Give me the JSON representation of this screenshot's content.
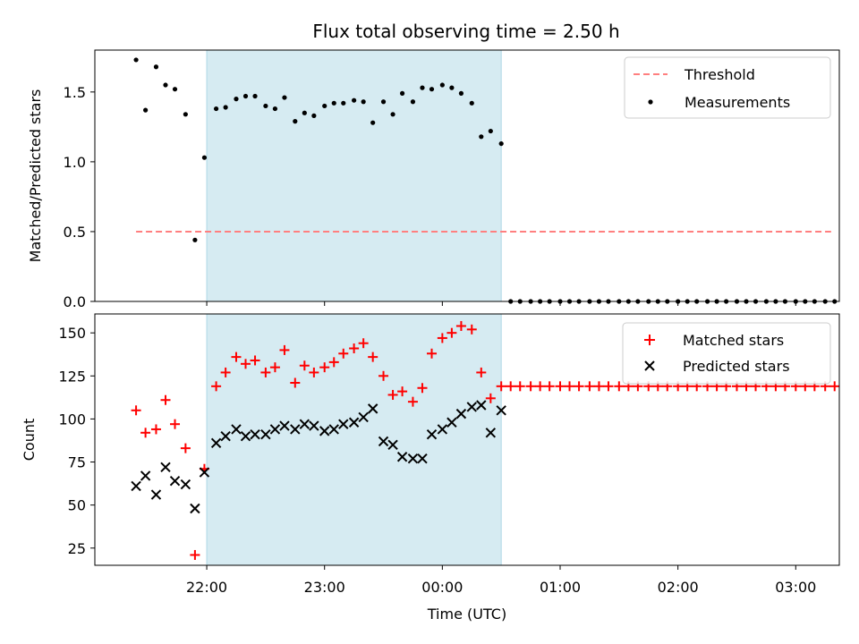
{
  "title": "Flux total observing time = 2.50 h",
  "colors": {
    "threshold": "#ff7f7f",
    "measurement": "#000000",
    "matched": "#ff0000",
    "predicted": "#000000",
    "shade": "#add8e6"
  },
  "chart_data": [
    {
      "type": "scatter",
      "ylabel": "Matched/Predicted stars",
      "xlim": [
        -0.95,
        5.37
      ],
      "ylim": [
        0,
        1.8
      ],
      "yticks": [
        0.0,
        0.5,
        1.0,
        1.5
      ],
      "ytick_labels": [
        "0.0",
        "0.5",
        "1.0",
        "1.5"
      ],
      "shaded_span": [
        0,
        2.5
      ],
      "legend": {
        "placement": "top-right",
        "entries": [
          "Threshold",
          "Measurements"
        ]
      },
      "threshold": {
        "name": "Threshold",
        "value": 0.5,
        "x": [
          -0.6,
          5.3
        ]
      },
      "series": [
        {
          "name": "Measurements",
          "x": [
            -0.6,
            -0.52,
            -0.43,
            -0.35,
            -0.27,
            -0.18,
            -0.1,
            -0.02,
            0.08,
            0.16,
            0.25,
            0.33,
            0.41,
            0.5,
            0.58,
            0.66,
            0.75,
            0.83,
            0.91,
            1.0,
            1.08,
            1.16,
            1.25,
            1.33,
            1.41,
            1.5,
            1.58,
            1.66,
            1.75,
            1.83,
            1.91,
            2.0,
            2.08,
            2.16,
            2.25,
            2.33,
            2.41,
            2.5,
            2.58,
            2.66,
            2.75,
            2.83,
            2.91,
            3.0,
            3.08,
            3.16,
            3.25,
            3.33,
            3.41,
            3.5,
            3.58,
            3.66,
            3.75,
            3.83,
            3.91,
            4.0,
            4.08,
            4.16,
            4.25,
            4.33,
            4.41,
            4.5,
            4.58,
            4.66,
            4.75,
            4.83,
            4.91,
            5.0,
            5.08,
            5.16,
            5.25,
            5.33
          ],
          "values": [
            1.73,
            1.37,
            1.68,
            1.55,
            1.52,
            1.34,
            0.44,
            1.03,
            1.38,
            1.39,
            1.45,
            1.47,
            1.47,
            1.4,
            1.38,
            1.46,
            1.29,
            1.35,
            1.33,
            1.4,
            1.42,
            1.42,
            1.44,
            1.43,
            1.28,
            1.43,
            1.34,
            1.49,
            1.43,
            1.53,
            1.52,
            1.55,
            1.53,
            1.49,
            1.42,
            1.18,
            1.22,
            1.13,
            0.0,
            0.0,
            0.0,
            0.0,
            0.0,
            0.0,
            0.0,
            0.0,
            0.0,
            0.0,
            0.0,
            0.0,
            0.0,
            0.0,
            0.0,
            0.0,
            0.0,
            0.0,
            0.0,
            0.0,
            0.0,
            0.0,
            0.0,
            0.0,
            0.0,
            0.0,
            0.0,
            0.0,
            0.0,
            0.0,
            0.0,
            0.0,
            0.0,
            0.0
          ]
        }
      ]
    },
    {
      "type": "scatter",
      "xlabel": "Time (UTC)",
      "ylabel": "Count",
      "xlim": [
        -0.95,
        5.37
      ],
      "ylim": [
        15,
        161
      ],
      "yticks": [
        25,
        50,
        75,
        100,
        125,
        150
      ],
      "xticks": [
        0,
        1,
        2,
        3,
        4,
        5
      ],
      "xtick_labels": [
        "22:00",
        "23:00",
        "00:00",
        "01:00",
        "02:00",
        "03:00"
      ],
      "shaded_span": [
        0,
        2.5
      ],
      "legend": {
        "placement": "top-right",
        "entries": [
          "Matched stars",
          "Predicted stars"
        ]
      },
      "series": [
        {
          "name": "Matched stars",
          "x": [
            -0.6,
            -0.52,
            -0.43,
            -0.35,
            -0.27,
            -0.18,
            -0.1,
            -0.02,
            0.08,
            0.16,
            0.25,
            0.33,
            0.41,
            0.5,
            0.58,
            0.66,
            0.75,
            0.83,
            0.91,
            1.0,
            1.08,
            1.16,
            1.25,
            1.33,
            1.41,
            1.5,
            1.58,
            1.66,
            1.75,
            1.83,
            1.91,
            2.0,
            2.08,
            2.16,
            2.25,
            2.33,
            2.41,
            2.5,
            2.58,
            2.66,
            2.75,
            2.83,
            2.91,
            3.0,
            3.08,
            3.16,
            3.25,
            3.33,
            3.41,
            3.5,
            3.58,
            3.66,
            3.75,
            3.83,
            3.91,
            4.0,
            4.08,
            4.16,
            4.25,
            4.33,
            4.41,
            4.5,
            4.58,
            4.66,
            4.75,
            4.83,
            4.91,
            5.0,
            5.08,
            5.16,
            5.25,
            5.33
          ],
          "values": [
            105,
            92,
            94,
            111,
            97,
            83,
            21,
            71,
            119,
            127,
            136,
            132,
            134,
            127,
            130,
            140,
            121,
            131,
            127,
            130,
            133,
            138,
            141,
            144,
            136,
            125,
            114,
            116,
            110,
            118,
            138,
            147,
            150,
            154,
            152,
            127,
            112,
            119,
            119,
            119,
            119,
            119,
            119,
            119,
            119,
            119,
            119,
            119,
            119,
            119,
            119,
            119,
            119,
            119,
            119,
            119,
            119,
            119,
            119,
            119,
            119,
            119,
            119,
            119,
            119,
            119,
            119,
            119,
            119,
            119,
            119,
            119
          ]
        },
        {
          "name": "Predicted stars",
          "x": [
            -0.6,
            -0.52,
            -0.43,
            -0.35,
            -0.27,
            -0.18,
            -0.1,
            -0.02,
            0.08,
            0.16,
            0.25,
            0.33,
            0.41,
            0.5,
            0.58,
            0.66,
            0.75,
            0.83,
            0.91,
            1.0,
            1.08,
            1.16,
            1.25,
            1.33,
            1.41,
            1.5,
            1.58,
            1.66,
            1.75,
            1.83,
            1.91,
            2.0,
            2.08,
            2.16,
            2.25,
            2.33,
            2.41,
            2.5
          ],
          "values": [
            61,
            67,
            56,
            72,
            64,
            62,
            48,
            69,
            86,
            90,
            94,
            90,
            91,
            91,
            94,
            96,
            94,
            97,
            96,
            93,
            94,
            97,
            98,
            101,
            106,
            87,
            85,
            78,
            77,
            77,
            91,
            94,
            98,
            103,
            107,
            108,
            92,
            105
          ]
        }
      ]
    }
  ]
}
